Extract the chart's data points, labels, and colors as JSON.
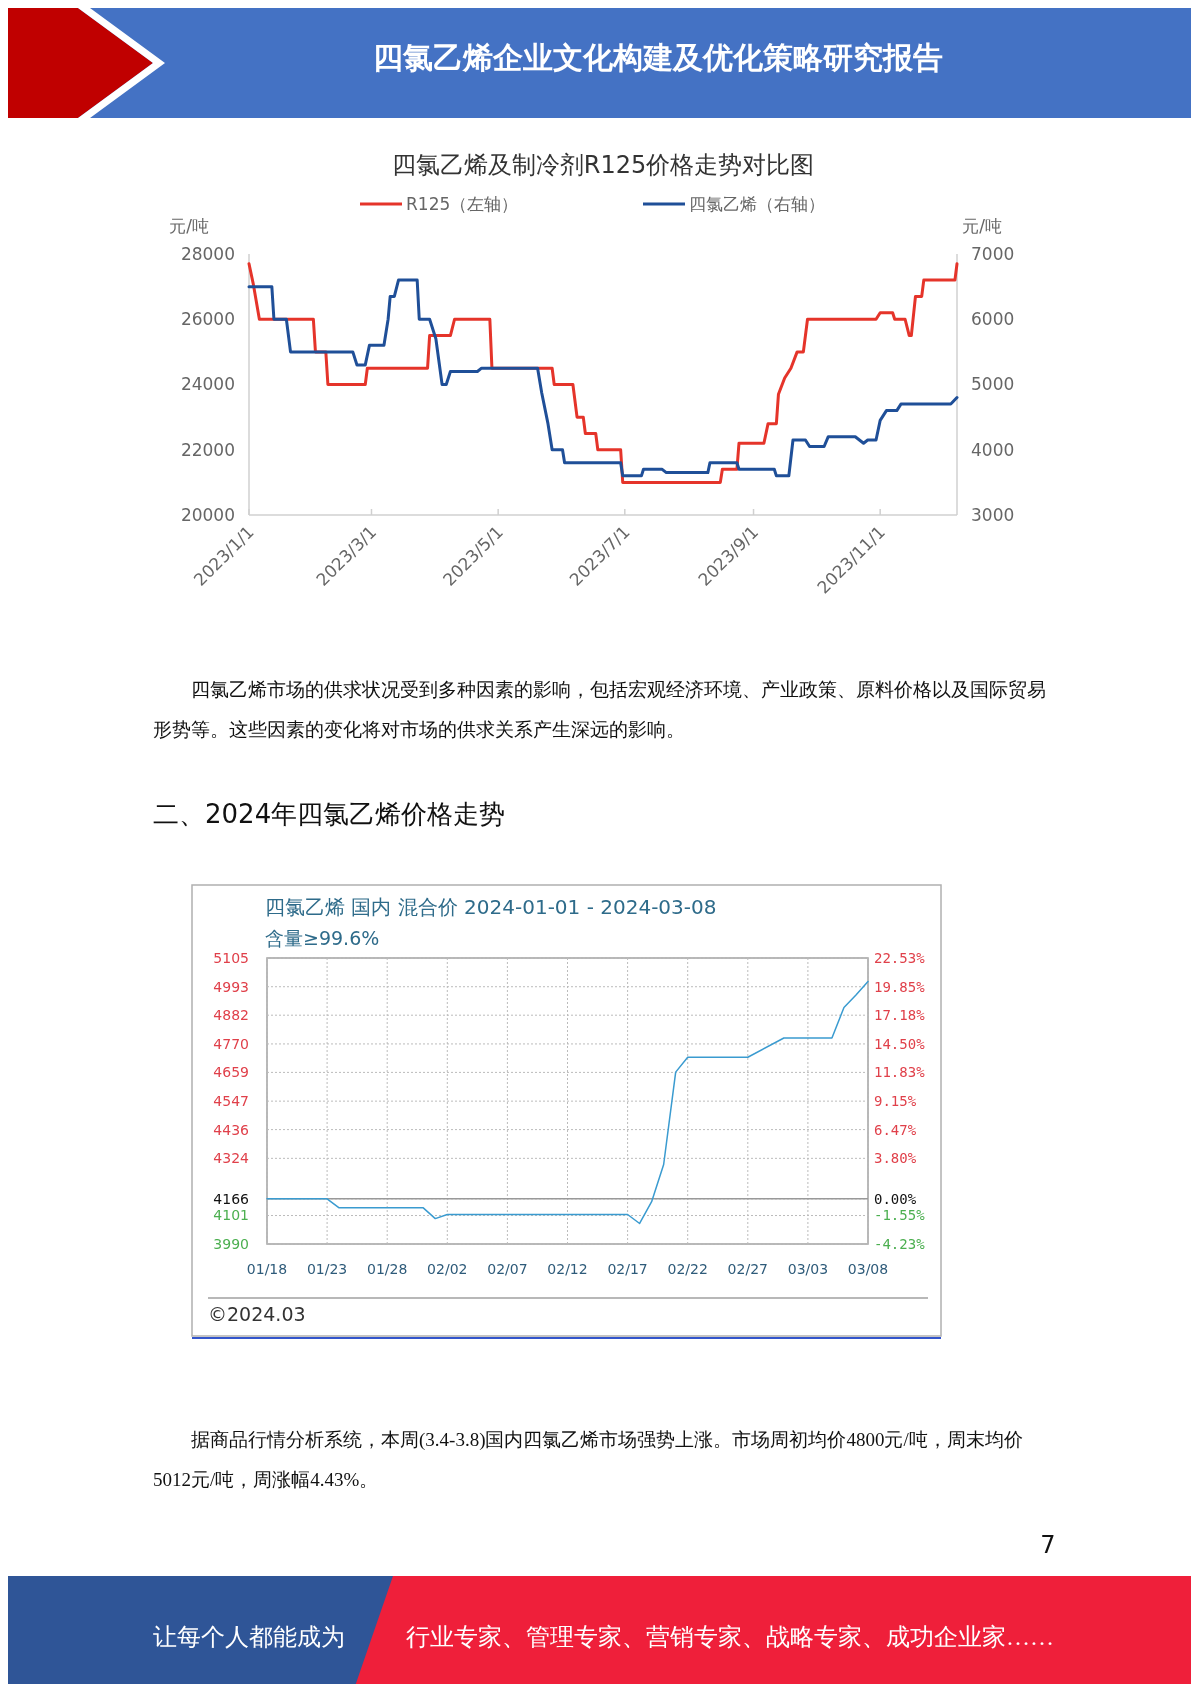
{
  "chart_data": [
    {
      "type": "line",
      "title": "四氯乙烯及制冷剂R125价格走势对比图",
      "ylabel": "元/吨",
      "y2label": "元/吨",
      "legend": "top",
      "xlim": [
        "2023-01-01",
        "2023-12-08"
      ],
      "xticks": [
        {
          "value": "2023-01-01",
          "label": "2023/1/1"
        },
        {
          "value": "2023-03-01",
          "label": "2023/3/1"
        },
        {
          "value": "2023-05-01",
          "label": "2023/5/1"
        },
        {
          "value": "2023-07-01",
          "label": "2023/7/1"
        },
        {
          "value": "2023-09-01",
          "label": "2023/9/1"
        },
        {
          "value": "2023-11-01",
          "label": "2023/11/1"
        }
      ],
      "ylim": [
        20000,
        28000
      ],
      "yticks": [
        20000,
        22000,
        24000,
        26000,
        28000
      ],
      "y2lim": [
        3000,
        7000
      ],
      "y2ticks": [
        3000,
        4000,
        5000,
        6000,
        7000
      ],
      "series": [
        {
          "name": "R125（左轴）",
          "color": "#e5342a",
          "x": [
            "2023-01-01",
            "2023-01-03",
            "2023-01-06",
            "2023-02-01",
            "2023-02-02",
            "2023-02-07",
            "2023-02-08",
            "2023-02-26",
            "2023-02-27",
            "2023-03-28",
            "2023-03-29",
            "2023-04-08",
            "2023-04-10",
            "2023-04-27",
            "2023-04-28",
            "2023-05-27",
            "2023-05-28",
            "2023-06-06",
            "2023-06-08",
            "2023-06-11",
            "2023-06-12",
            "2023-06-17",
            "2023-06-18",
            "2023-06-29",
            "2023-06-30",
            "2023-08-16",
            "2023-08-17",
            "2023-08-24",
            "2023-08-25",
            "2023-09-06",
            "2023-09-08",
            "2023-09-12",
            "2023-09-13",
            "2023-09-16",
            "2023-09-19",
            "2023-09-22",
            "2023-09-25",
            "2023-09-27",
            "2023-10-30",
            "2023-11-01",
            "2023-11-07",
            "2023-11-08",
            "2023-11-13",
            "2023-11-15",
            "2023-11-16",
            "2023-11-18",
            "2023-11-21",
            "2023-11-22",
            "2023-12-07",
            "2023-12-08"
          ],
          "values": [
            27700,
            27100,
            26000,
            26000,
            25000,
            25000,
            24000,
            24000,
            24500,
            24500,
            25500,
            25500,
            26000,
            26000,
            24500,
            24500,
            24000,
            24000,
            23000,
            23000,
            22500,
            22500,
            22000,
            22000,
            21000,
            21000,
            21400,
            21400,
            22200,
            22200,
            22800,
            22800,
            23700,
            24200,
            24500,
            25000,
            25000,
            26000,
            26000,
            26200,
            26200,
            26000,
            26000,
            25500,
            25500,
            26700,
            26700,
            27200,
            27200,
            27700
          ]
        },
        {
          "name": "四氯乙烯（右轴）",
          "color": "#1f4f98",
          "axis": "y2",
          "x": [
            "2023-01-01",
            "2023-01-12",
            "2023-01-13",
            "2023-01-19",
            "2023-01-21",
            "2023-02-20",
            "2023-02-22",
            "2023-02-26",
            "2023-02-28",
            "2023-03-07",
            "2023-03-09",
            "2023-03-10",
            "2023-03-12",
            "2023-03-14",
            "2023-03-23",
            "2023-03-24",
            "2023-03-29",
            "2023-04-01",
            "2023-04-04",
            "2023-04-06",
            "2023-04-08",
            "2023-04-21",
            "2023-04-23",
            "2023-05-20",
            "2023-05-22",
            "2023-05-25",
            "2023-05-27",
            "2023-06-01",
            "2023-06-02",
            "2023-06-29",
            "2023-06-30",
            "2023-07-09",
            "2023-07-10",
            "2023-07-19",
            "2023-07-21",
            "2023-08-10",
            "2023-08-11",
            "2023-08-24",
            "2023-08-25",
            "2023-09-11",
            "2023-09-12",
            "2023-09-18",
            "2023-09-20",
            "2023-09-26",
            "2023-09-28",
            "2023-10-05",
            "2023-10-07",
            "2023-10-20",
            "2023-10-24",
            "2023-10-26",
            "2023-10-30",
            "2023-11-01",
            "2023-11-04",
            "2023-11-09",
            "2023-11-11",
            "2023-12-05",
            "2023-12-08"
          ],
          "values": [
            6500,
            6500,
            6000,
            6000,
            5500,
            5500,
            5300,
            5300,
            5600,
            5600,
            6000,
            6350,
            6350,
            6600,
            6600,
            6000,
            6000,
            5700,
            5000,
            5000,
            5200,
            5200,
            5250,
            5250,
            4870,
            4400,
            4000,
            4000,
            3800,
            3800,
            3600,
            3600,
            3700,
            3700,
            3650,
            3650,
            3800,
            3800,
            3700,
            3700,
            3600,
            3600,
            4150,
            4150,
            4050,
            4050,
            4200,
            4200,
            4100,
            4150,
            4150,
            4450,
            4600,
            4600,
            4700,
            4700,
            4800
          ]
        }
      ],
      "annotations": [
        "四氯乙烯企业文化构建及优化策略研究报告",
        "四氯乙烯市场的供求状况受到多种因素的影响，包括宏观经济环境、产业政策、原料价格以及国际贸易形势等。这些因素的变化将对市场的供求关系产生深远的影响。"
      ]
    },
    {
      "type": "line",
      "title": "四氯乙烯 国内 混合价 2024-01-01 - 2024-03-08",
      "subtitle": "含量≥99.6%",
      "grid": true,
      "xlim": [
        "2024-01-18",
        "2024-03-08"
      ],
      "xticks": [
        {
          "value": "2024-01-18",
          "label": "01/18"
        },
        {
          "value": "2024-01-23",
          "label": "01/23"
        },
        {
          "value": "2024-01-28",
          "label": "01/28"
        },
        {
          "value": "2024-02-02",
          "label": "02/02"
        },
        {
          "value": "2024-02-07",
          "label": "02/07"
        },
        {
          "value": "2024-02-12",
          "label": "02/12"
        },
        {
          "value": "2024-02-17",
          "label": "02/17"
        },
        {
          "value": "2024-02-22",
          "label": "02/22"
        },
        {
          "value": "2024-02-27",
          "label": "02/27"
        },
        {
          "value": "2024-03-03",
          "label": "03/03"
        },
        {
          "value": "2024-03-08",
          "label": "03/08"
        }
      ],
      "ylim": [
        3990,
        5105
      ],
      "yticks": [
        3990,
        4101,
        4166,
        4324,
        4436,
        4547,
        4659,
        4770,
        4882,
        4993,
        5105
      ],
      "y2lim": [
        -4.23,
        22.53
      ],
      "y2ticks": [
        {
          "value": -4.23,
          "label": "-4.23%"
        },
        {
          "value": -1.55,
          "label": "-1.55%"
        },
        {
          "value": 0,
          "label": "0.00%"
        },
        {
          "value": 3.8,
          "label": "3.80%"
        },
        {
          "value": 6.47,
          "label": "6.47%"
        },
        {
          "value": 9.15,
          "label": "9.15%"
        },
        {
          "value": 11.83,
          "label": "11.83%"
        },
        {
          "value": 14.5,
          "label": "14.50%"
        },
        {
          "value": 17.18,
          "label": "17.18%"
        },
        {
          "value": 19.85,
          "label": "19.85%"
        },
        {
          "value": 22.53,
          "label": "22.53%"
        }
      ],
      "ref_lines": [
        {
          "axis": "y",
          "value": 4166,
          "color": "#999999"
        }
      ],
      "series": [
        {
          "color": "#3a9bd0",
          "x": [
            "2024-01-18",
            "2024-01-23",
            "2024-01-24",
            "2024-01-31",
            "2024-02-01",
            "2024-02-02",
            "2024-02-17",
            "2024-02-18",
            "2024-02-19",
            "2024-02-20",
            "2024-02-21",
            "2024-02-22",
            "2024-02-27",
            "2024-03-01",
            "2024-03-05",
            "2024-03-06",
            "2024-03-07",
            "2024-03-08"
          ],
          "values": [
            4166,
            4166,
            4131,
            4131,
            4089,
            4105,
            4105,
            4070,
            4155,
            4300,
            4660,
            4718,
            4718,
            4793,
            4793,
            4912,
            4961,
            5013
          ]
        }
      ],
      "annotations": [
        "二、2024年四氯乙烯价格走势",
        "据商品行情分析系统，本周(3.4-3.8)国内四氯乙烯市场强势上涨。市场周初均价4800元/吨，周末均价5012元/吨，周涨幅4.43%。",
        "©2024.03",
        "7",
        "让每个人都能成为",
        "行业专家、管理专家、营销专家、战略专家、成功企业家……"
      ]
    }
  ]
}
